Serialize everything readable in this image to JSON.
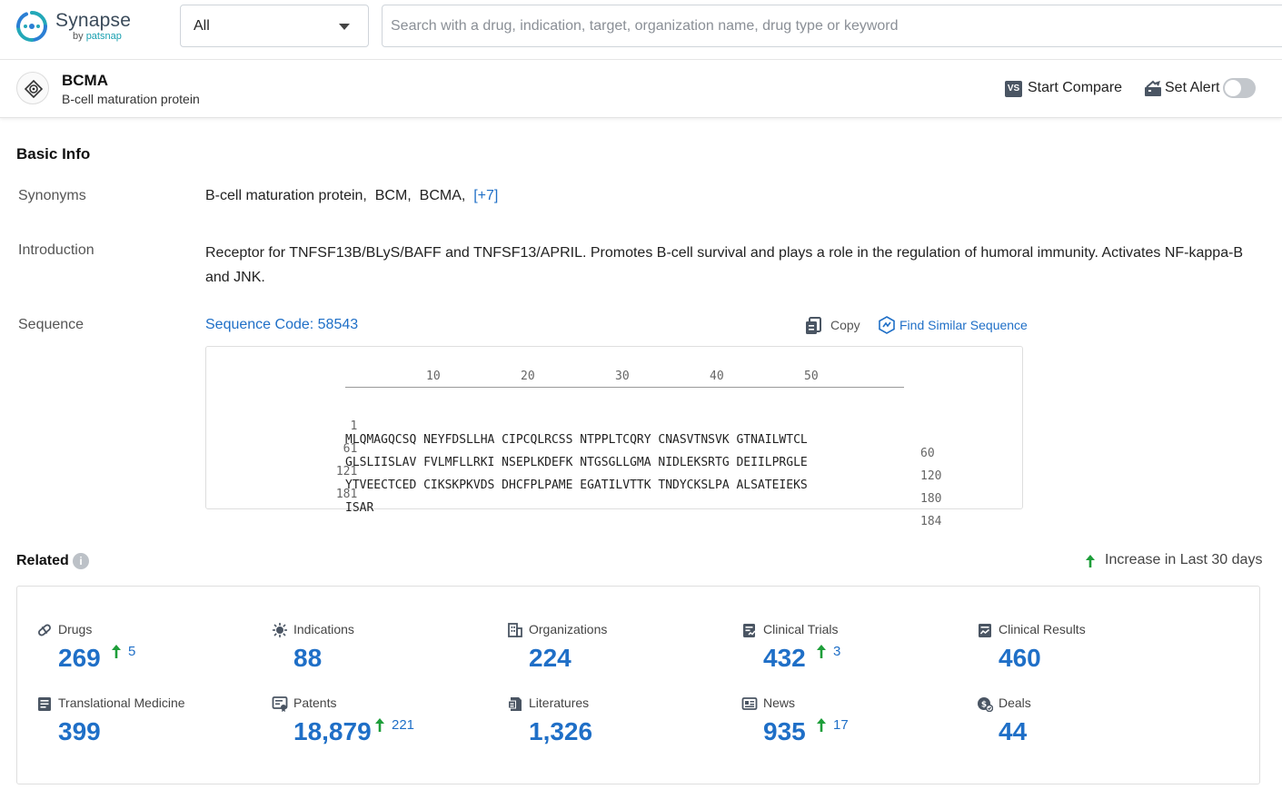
{
  "app": {
    "name": "Synapse",
    "by": "by",
    "brand": "patsnap"
  },
  "search": {
    "scope": "All",
    "placeholder": "Search with a drug, indication, target, organization name, drug type or keyword",
    "value": ""
  },
  "entity": {
    "title": "BCMA",
    "subtitle": "B-cell maturation protein",
    "compare_badge": "VS",
    "compare_label": "Start Compare",
    "alert_label": "Set Alert",
    "alert_on": false
  },
  "basic_info": {
    "title": "Basic Info",
    "synonyms_label": "Synonyms",
    "synonyms": "B-cell maturation protein,  BCM,  BCMA,",
    "synonyms_more": "[+7]",
    "intro_label": "Introduction",
    "intro": "Receptor for TNFSF13B/BLyS/BAFF and TNFSF13/APRIL. Promotes B-cell survival and plays a role in the regulation of humoral immunity. Activates NF-kappa-B and JNK.",
    "sequence_label": "Sequence",
    "sequence_code": "Sequence Code: 58543",
    "copy_label": "Copy",
    "similar_label": "Find Similar Sequence",
    "ruler": [
      "10",
      "20",
      "30",
      "40",
      "50"
    ],
    "sequence_rows": [
      {
        "start": "1",
        "seq": "MLQMAGQCSQ NEYFDSLLHA CIPCQLRCSS NTPPLTCQRY CNASVTNSVK GTNAILWTCL",
        "end": "60"
      },
      {
        "start": "61",
        "seq": "GLSLIISLAV FVLMFLLRKI NSEPLKDEFK NTGSGLLGMA NIDLEKSRTG DEIILPRGLE",
        "end": "120"
      },
      {
        "start": "121",
        "seq": "YTVEECTCED CIKSKPKVDS DHCFPLPAME EGATILVTTK TNDYCKSLPA ALSATEIEKS",
        "end": "180"
      },
      {
        "start": "181",
        "seq": "ISAR",
        "end": "184"
      }
    ]
  },
  "related": {
    "title": "Related",
    "info_glyph": "i",
    "legend": "Increase in Last 30 days",
    "increase_color": "#1e9e3a",
    "value_color": "#1f6fc7",
    "stats": [
      {
        "label": "Drugs",
        "value": "269",
        "increase": "5",
        "icon": "pill-icon"
      },
      {
        "label": "Indications",
        "value": "88",
        "increase": "",
        "icon": "virus-icon"
      },
      {
        "label": "Organizations",
        "value": "224",
        "increase": "",
        "icon": "building-icon"
      },
      {
        "label": "Clinical Trials",
        "value": "432",
        "increase": "3",
        "icon": "clipboard-icon"
      },
      {
        "label": "Clinical Results",
        "value": "460",
        "increase": "",
        "icon": "report-icon"
      },
      {
        "label": "Translational Medicine",
        "value": "399",
        "increase": "",
        "icon": "document-icon"
      },
      {
        "label": "Patents",
        "value": "18,879",
        "increase": "221",
        "icon": "patent-icon"
      },
      {
        "label": "Literatures",
        "value": "1,326",
        "increase": "",
        "icon": "book-icon"
      },
      {
        "label": "News",
        "value": "935",
        "increase": "17",
        "icon": "newspaper-icon"
      },
      {
        "label": "Deals",
        "value": "44",
        "increase": "",
        "icon": "handshake-icon"
      }
    ]
  }
}
